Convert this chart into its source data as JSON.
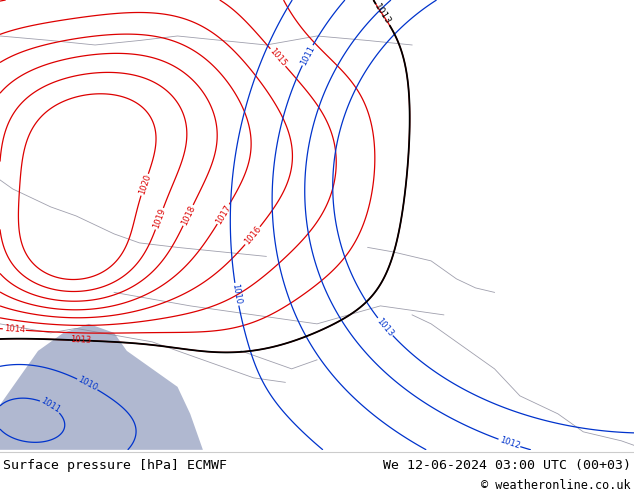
{
  "title_left": "Surface pressure [hPa] ECMWF",
  "title_right": "We 12-06-2024 03:00 UTC (00+03)",
  "copyright": "© weatheronline.co.uk",
  "bg_color": "#b8dc78",
  "sea_color": "#b0b8d0",
  "footer_bg": "#ffffff",
  "isobar_color_red": "#dd0000",
  "isobar_color_black": "#000000",
  "isobar_color_blue": "#0033cc",
  "coast_color": "#888899"
}
